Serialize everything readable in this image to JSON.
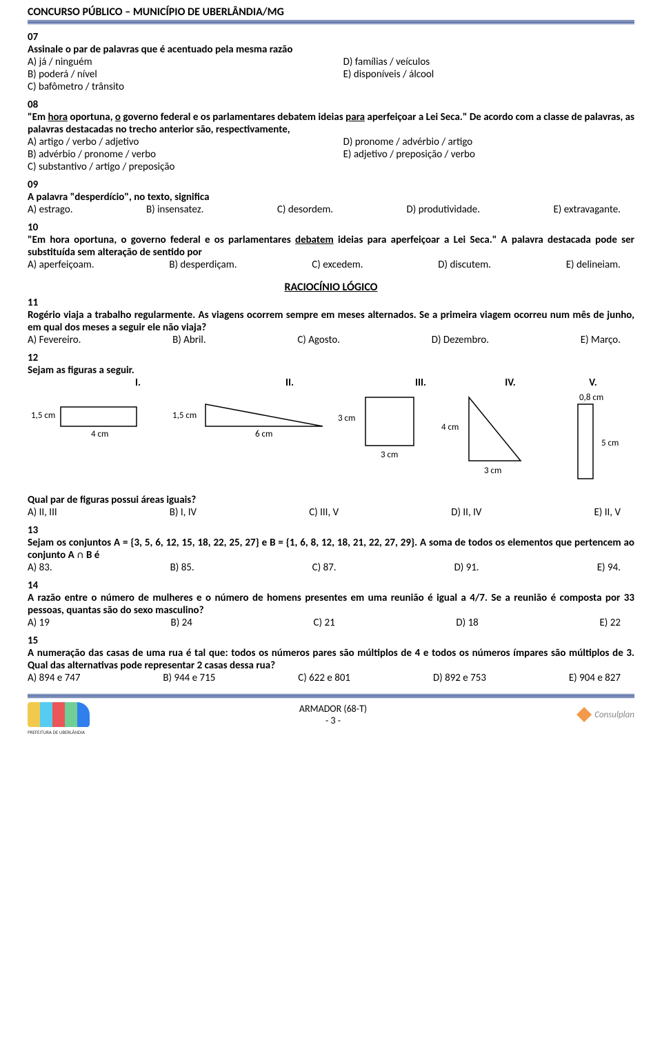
{
  "header": {
    "title": "CONCURSO PÚBLICO – MUNICÍPIO DE UBERLÂNDIA/MG"
  },
  "q07": {
    "num": "07",
    "stem": "Assinale o par de palavras que é acentuado pela mesma razão",
    "a": "A) já / ninguém",
    "b": "B) poderá / nível",
    "c": "C) bafômetro / trânsito",
    "d": "D) famílias / veículos",
    "e": "E) disponíveis / álcool"
  },
  "q08": {
    "num": "08",
    "stem_html": "\"Em <u>hora</u> oportuna, <u>o</u> governo federal e os parlamentares debatem ideias <u>para</u> aperfeiçoar a Lei Seca.\" De acordo com a classe de palavras, as palavras destacadas no trecho anterior são, respectivamente,",
    "a": "A) artigo / verbo / adjetivo",
    "b": "B) advérbio / pronome / verbo",
    "c": "C) substantivo / artigo / preposição",
    "d": "D) pronome / advérbio / artigo",
    "e": "E) adjetivo / preposição / verbo"
  },
  "q09": {
    "num": "09",
    "stem": "A palavra \"desperdício\", no texto, significa",
    "a": "A) estrago.",
    "b": "B) insensatez.",
    "c": "C) desordem.",
    "d": "D) produtividade.",
    "e": "E) extravagante."
  },
  "q10": {
    "num": "10",
    "stem_html": "\"Em hora oportuna, o governo federal e os parlamentares <u>debatem</u> ideias para aperfeiçoar a Lei Seca.\" A palavra destacada pode ser substituída sem alteração de sentido por",
    "a": "A) aperfeiçoam.",
    "b": "B) desperdiçam.",
    "c": "C) excedem.",
    "d": "D) discutem.",
    "e": "E) delineiam."
  },
  "section": {
    "title": "RACIOCÍNIO LÓGICO"
  },
  "q11": {
    "num": "11",
    "stem": "Rogério viaja a trabalho regularmente. As viagens ocorrem sempre em meses alternados. Se a primeira viagem ocorreu num mês de junho, em qual dos meses a seguir ele não viaja?",
    "a": "A) Fevereiro.",
    "b": "B) Abril.",
    "c": "C) Agosto.",
    "d": "D) Dezembro.",
    "e": "E) Março."
  },
  "q12": {
    "num": "12",
    "stem": "Sejam as figuras a seguir.",
    "labels": {
      "I": "I.",
      "II": "II.",
      "III": "III.",
      "IV": "IV.",
      "V": "V."
    },
    "fig1": {
      "left": "1,5 cm",
      "bottom": "4 cm"
    },
    "fig2": {
      "left": "1,5 cm",
      "bottom": "6 cm"
    },
    "fig3": {
      "left": "3 cm",
      "bottom": "3 cm"
    },
    "fig4": {
      "left": "4 cm",
      "bottom": "3 cm"
    },
    "fig5": {
      "top": "0,8 cm",
      "right": "5 cm"
    },
    "sub": "Qual par de figuras possui áreas iguais?",
    "a": "A) II, III",
    "b": "B) I, IV",
    "c": "C) III, V",
    "d": "D) II, IV",
    "e": "E) II, V"
  },
  "q13": {
    "num": "13",
    "stem": "Sejam os conjuntos A = {3, 5, 6, 12, 15, 18, 22, 25, 27} e B = {1, 6, 8, 12, 18, 21, 22, 27, 29}. A soma de todos os elementos que pertencem ao conjunto A ∩ B é",
    "a": "A) 83.",
    "b": "B) 85.",
    "c": "C) 87.",
    "d": "D) 91.",
    "e": "E) 94."
  },
  "q14": {
    "num": "14",
    "stem": "A razão entre o número de mulheres e o número de homens presentes em uma reunião é igual a 4/7. Se a reunião é composta por 33 pessoas, quantas são do sexo masculino?",
    "a": "A) 19",
    "b": "B) 24",
    "c": "C) 21",
    "d": "D) 18",
    "e": "E) 22"
  },
  "q15": {
    "num": "15",
    "stem": "A numeração das casas de uma rua é tal que: todos os números pares são múltiplos de 4 e todos os números ímpares são múltiplos de 3. Qual das alternativas pode representar 2 casas dessa rua?",
    "a": "A) 894 e 747",
    "b": "B) 944 e 715",
    "c": "C) 622 e 801",
    "d": "D) 892 e 753",
    "e": "E) 904 e 827"
  },
  "footer": {
    "line1": "ARMADOR (68-T)",
    "line2": "- 3 -",
    "brand": "Consulplan"
  }
}
